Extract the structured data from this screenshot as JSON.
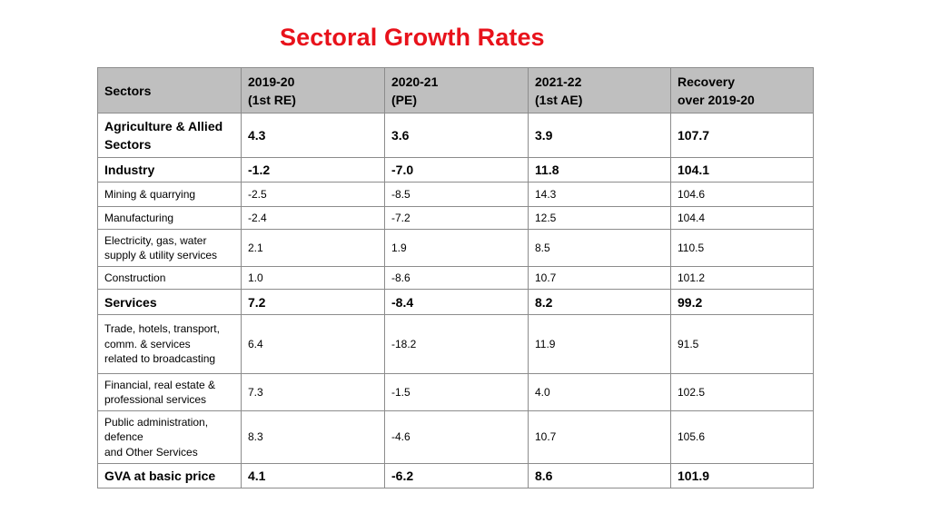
{
  "title": "Sectoral Growth Rates",
  "colors": {
    "title": "#e8121b",
    "header_background": "#bfbfbf",
    "border": "#8c8c8c"
  },
  "table": {
    "headers": [
      {
        "line1": "Sectors",
        "line2": ""
      },
      {
        "line1": "2019-20",
        "line2": "(1st RE)"
      },
      {
        "line1": "2020-21",
        "line2": "(PE)"
      },
      {
        "line1": "2021-22",
        "line2": "(1st AE)"
      },
      {
        "line1": "Recovery",
        "line2": "over 2019-20"
      }
    ],
    "rows": [
      {
        "sector": "Agriculture & Allied\nSectors",
        "v2019_20": "4.3",
        "v2020_21": "3.6",
        "v2021_22": "3.9",
        "recovery": "107.7",
        "major": true
      },
      {
        "sector": "Industry",
        "v2019_20": "-1.2",
        "v2020_21": "-7.0",
        "v2021_22": "11.8",
        "recovery": "104.1",
        "major": true
      },
      {
        "sector": "Mining & quarrying",
        "v2019_20": "-2.5",
        "v2020_21": "-8.5",
        "v2021_22": "14.3",
        "recovery": "104.6",
        "major": false
      },
      {
        "sector": "Manufacturing",
        "v2019_20": "-2.4",
        "v2020_21": "-7.2",
        "v2021_22": "12.5",
        "recovery": "104.4",
        "major": false
      },
      {
        "sector": "Electricity, gas, water\nsupply & utility services",
        "v2019_20": "2.1",
        "v2020_21": "1.9",
        "v2021_22": "8.5",
        "recovery": "110.5",
        "major": false
      },
      {
        "sector": "Construction",
        "v2019_20": "1.0",
        "v2020_21": "-8.6",
        "v2021_22": "10.7",
        "recovery": "101.2",
        "major": false
      },
      {
        "sector": "Services",
        "v2019_20": "7.2",
        "v2020_21": "-8.4",
        "v2021_22": "8.2",
        "recovery": "99.2",
        "major": true
      },
      {
        "sector": "Trade, hotels, transport,\ncomm. & services\nrelated to broadcasting",
        "v2019_20": "6.4",
        "v2020_21": "-18.2",
        "v2021_22": "11.9",
        "recovery": "91.5",
        "major": false
      },
      {
        "sector": "Financial, real estate &\nprofessional services",
        "v2019_20": "7.3",
        "v2020_21": "-1.5",
        "v2021_22": "4.0",
        "recovery": "102.5",
        "major": false
      },
      {
        "sector": "Public administration,\ndefence\nand Other Services",
        "v2019_20": "8.3",
        "v2020_21": "-4.6",
        "v2021_22": "10.7",
        "recovery": "105.6",
        "major": false
      },
      {
        "sector": "GVA at basic price",
        "v2019_20": "4.1",
        "v2020_21": "-6.2",
        "v2021_22": "8.6",
        "recovery": "101.9",
        "major": true
      }
    ]
  }
}
